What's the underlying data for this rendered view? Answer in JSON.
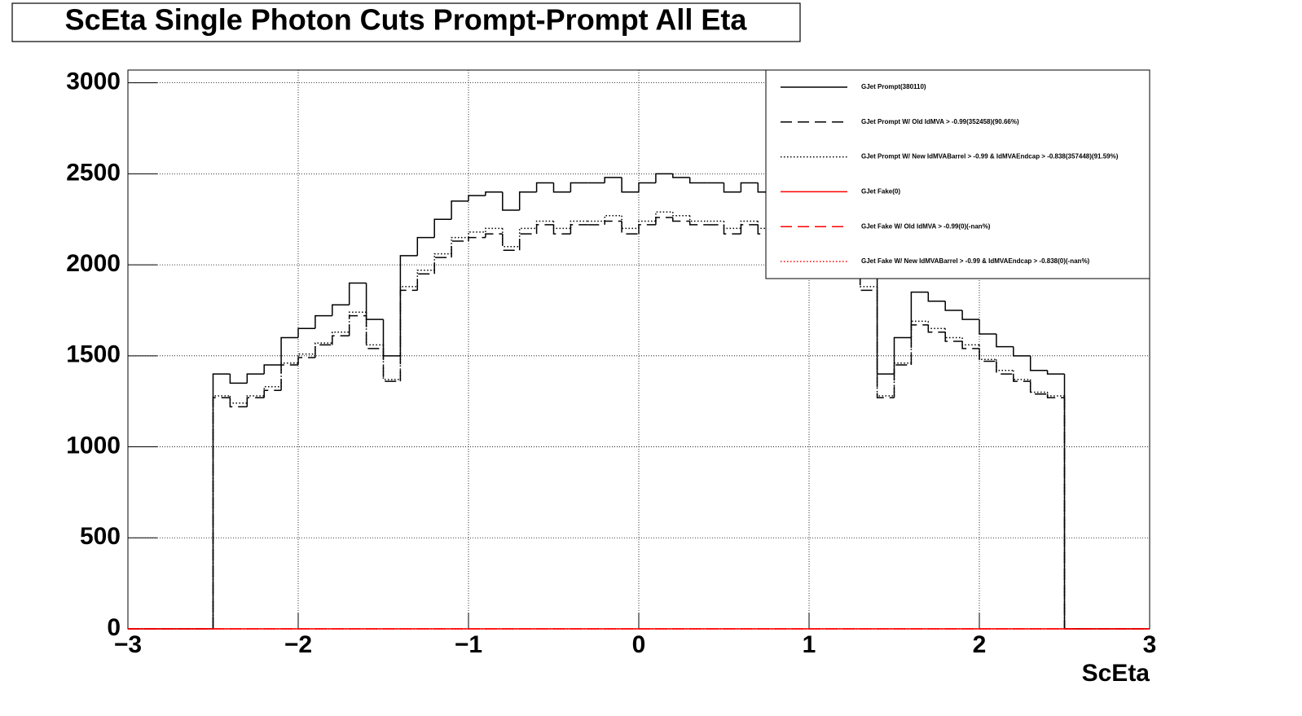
{
  "chart_data": {
    "type": "histogram",
    "title": "ScEta Single Photon Cuts Prompt-Prompt All Eta",
    "x_label": "ScEta",
    "bins": [
      -3,
      -2.9,
      -2.8,
      -2.7,
      -2.6,
      -2.5,
      -2.4,
      -2.3,
      -2.2,
      -2.1,
      -2,
      -1.9,
      -1.8,
      -1.7,
      -1.6,
      -1.5,
      -1.4,
      -1.3,
      -1.2,
      -1.1,
      -1,
      -0.9,
      -0.8,
      -0.7,
      -0.6,
      -0.5,
      -0.4,
      -0.3,
      -0.2,
      -0.1,
      0,
      0.1,
      0.2,
      0.3,
      0.4,
      0.5,
      0.6,
      0.7,
      0.8,
      0.9,
      1,
      1.1,
      1.2,
      1.3,
      1.4,
      1.5,
      1.6,
      1.7,
      1.8,
      1.9,
      2,
      2.1,
      2.2,
      2.3,
      2.4,
      2.5,
      2.6,
      2.7,
      2.8,
      2.9,
      3
    ],
    "series": [
      {
        "name": "GJet Prompt(380110)",
        "color": "#000000",
        "line_style": "solid",
        "values": [
          0,
          0,
          0,
          0,
          0,
          1400,
          1350,
          1400,
          1450,
          1600,
          1650,
          1720,
          1780,
          1900,
          1700,
          1500,
          2050,
          2150,
          2250,
          2350,
          2380,
          2400,
          2300,
          2400,
          2450,
          2400,
          2450,
          2450,
          2480,
          2400,
          2450,
          2500,
          2480,
          2450,
          2450,
          2400,
          2450,
          2400,
          2350,
          2350,
          2300,
          2250,
          2150,
          2050,
          1400,
          1600,
          1850,
          1800,
          1750,
          1700,
          1620,
          1550,
          1500,
          1420,
          1400,
          0,
          0,
          0,
          0,
          0
        ]
      },
      {
        "name": "GJet Prompt W/ Old IdMVA > -0.99(352458)(90.66%)",
        "color": "#000000",
        "line_style": "dashed",
        "values": [
          0,
          0,
          0,
          0,
          0,
          1270,
          1220,
          1270,
          1310,
          1450,
          1490,
          1560,
          1610,
          1720,
          1540,
          1360,
          1860,
          1950,
          2040,
          2130,
          2150,
          2170,
          2080,
          2170,
          2220,
          2170,
          2220,
          2220,
          2240,
          2170,
          2220,
          2260,
          2240,
          2220,
          2220,
          2170,
          2220,
          2170,
          2130,
          2130,
          2080,
          2040,
          1950,
          1860,
          1270,
          1450,
          1670,
          1630,
          1580,
          1540,
          1470,
          1400,
          1360,
          1290,
          1270,
          0,
          0,
          0,
          0,
          0
        ]
      },
      {
        "name": "GJet Prompt W/ New IdMVABarrel > -0.99 & IdMVAEndcap > -0.838(357448)(91.59%)",
        "color": "#000000",
        "line_style": "dotted",
        "values": [
          0,
          0,
          0,
          0,
          0,
          1280,
          1240,
          1280,
          1330,
          1460,
          1510,
          1570,
          1630,
          1740,
          1560,
          1370,
          1880,
          1970,
          2060,
          2150,
          2180,
          2200,
          2100,
          2200,
          2240,
          2200,
          2240,
          2240,
          2270,
          2200,
          2240,
          2290,
          2270,
          2240,
          2240,
          2200,
          2240,
          2200,
          2150,
          2150,
          2100,
          2060,
          1970,
          1880,
          1280,
          1460,
          1690,
          1650,
          1600,
          1560,
          1480,
          1420,
          1370,
          1300,
          1280,
          0,
          0,
          0,
          0,
          0
        ]
      },
      {
        "name": "GJet Fake(0)",
        "color": "#ff0000",
        "line_style": "solid",
        "values": [
          0,
          0,
          0,
          0,
          0,
          0,
          0,
          0,
          0,
          0,
          0,
          0,
          0,
          0,
          0,
          0,
          0,
          0,
          0,
          0,
          0,
          0,
          0,
          0,
          0,
          0,
          0,
          0,
          0,
          0,
          0,
          0,
          0,
          0,
          0,
          0,
          0,
          0,
          0,
          0,
          0,
          0,
          0,
          0,
          0,
          0,
          0,
          0,
          0,
          0,
          0,
          0,
          0,
          0,
          0,
          0,
          0,
          0,
          0,
          0
        ]
      },
      {
        "name": "GJet Fake W/ Old IdMVA > -0.99(0)(-nan%)",
        "color": "#ff0000",
        "line_style": "dashed",
        "values": [
          0,
          0,
          0,
          0,
          0,
          0,
          0,
          0,
          0,
          0,
          0,
          0,
          0,
          0,
          0,
          0,
          0,
          0,
          0,
          0,
          0,
          0,
          0,
          0,
          0,
          0,
          0,
          0,
          0,
          0,
          0,
          0,
          0,
          0,
          0,
          0,
          0,
          0,
          0,
          0,
          0,
          0,
          0,
          0,
          0,
          0,
          0,
          0,
          0,
          0,
          0,
          0,
          0,
          0,
          0,
          0,
          0,
          0,
          0,
          0
        ]
      },
      {
        "name": "GJet Fake W/ New IdMVABarrel > -0.99 & IdMVAEndcap > -0.838(0)(-nan%)",
        "color": "#ff0000",
        "line_style": "dotted",
        "values": [
          0,
          0,
          0,
          0,
          0,
          0,
          0,
          0,
          0,
          0,
          0,
          0,
          0,
          0,
          0,
          0,
          0,
          0,
          0,
          0,
          0,
          0,
          0,
          0,
          0,
          0,
          0,
          0,
          0,
          0,
          0,
          0,
          0,
          0,
          0,
          0,
          0,
          0,
          0,
          0,
          0,
          0,
          0,
          0,
          0,
          0,
          0,
          0,
          0,
          0,
          0,
          0,
          0,
          0,
          0,
          0,
          0,
          0,
          0,
          0
        ]
      }
    ],
    "xlim": [
      -3,
      3
    ],
    "ylim": [
      0,
      3070
    ],
    "xticks": [
      {
        "value": -3,
        "label": "−3"
      },
      {
        "value": -2,
        "label": "−2"
      },
      {
        "value": -1,
        "label": "−1"
      },
      0,
      1,
      2,
      3
    ],
    "yticks": [
      0,
      500,
      1000,
      1500,
      2000,
      2500,
      3000
    ],
    "grid": true,
    "legend": "upper right"
  }
}
